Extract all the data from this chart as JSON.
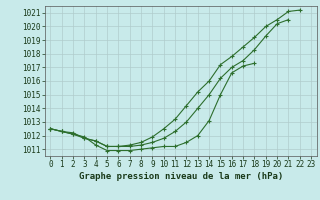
{
  "title": "Graphe pression niveau de la mer (hPa)",
  "background_color": "#c8eaea",
  "grid_color": "#b0cccc",
  "line_color": "#2d6e2d",
  "x_values": [
    0,
    1,
    2,
    3,
    4,
    5,
    6,
    7,
    8,
    9,
    10,
    11,
    12,
    13,
    14,
    15,
    16,
    17,
    18,
    19,
    20,
    21,
    22,
    23
  ],
  "series1": [
    1012.5,
    1012.3,
    1012.1,
    1011.9,
    1011.3,
    1010.9,
    1010.9,
    1010.9,
    1011.0,
    1011.1,
    1011.2,
    1011.2,
    1011.5,
    1012.0,
    1013.1,
    1015.0,
    1016.6,
    1017.1,
    1017.3,
    null,
    null,
    null,
    null,
    null
  ],
  "series2": [
    1012.5,
    1012.3,
    1012.1,
    1011.8,
    1011.6,
    1011.2,
    1011.2,
    1011.2,
    1011.3,
    1011.5,
    1011.8,
    1012.3,
    1013.0,
    1014.0,
    1015.0,
    1016.2,
    1017.0,
    1017.5,
    1018.3,
    1019.3,
    1020.2,
    1020.5,
    null,
    null
  ],
  "series3": [
    1012.5,
    1012.3,
    1012.2,
    1011.8,
    1011.6,
    1011.2,
    1011.2,
    1011.3,
    1011.5,
    1011.9,
    1012.5,
    1013.2,
    1014.2,
    1015.2,
    1016.0,
    1017.2,
    1017.8,
    1018.5,
    1019.2,
    1020.0,
    1020.5,
    1021.1,
    1021.2,
    null
  ],
  "ylim": [
    1010.5,
    1021.5
  ],
  "yticks": [
    1011,
    1012,
    1013,
    1014,
    1015,
    1016,
    1017,
    1018,
    1019,
    1020,
    1021
  ],
  "xlim": [
    -0.5,
    23.5
  ],
  "xticks": [
    0,
    1,
    2,
    3,
    4,
    5,
    6,
    7,
    8,
    9,
    10,
    11,
    12,
    13,
    14,
    15,
    16,
    17,
    18,
    19,
    20,
    21,
    22,
    23
  ],
  "marker": "+",
  "marker_size": 3,
  "line_width": 0.8,
  "tick_fontsize": 5.5,
  "xlabel_fontsize": 6.5,
  "figsize": [
    3.2,
    2.0
  ],
  "dpi": 100
}
